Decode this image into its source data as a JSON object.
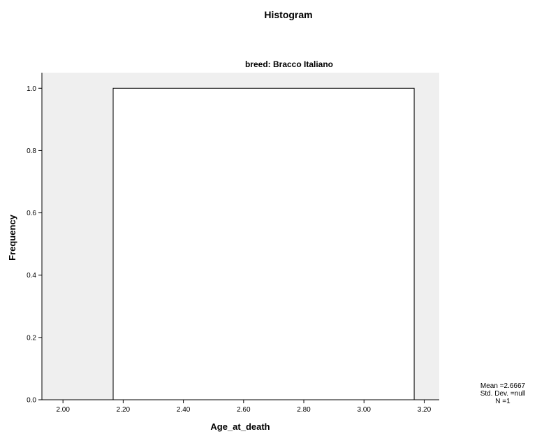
{
  "chart_data": {
    "type": "bar",
    "title": "Histogram",
    "subtitle": "breed: Bracco Italiano",
    "xlabel": "Age_at_death",
    "ylabel": "Frequency",
    "xlim": [
      1.93,
      3.25
    ],
    "ylim": [
      0,
      1.05
    ],
    "x_ticks": [
      2.0,
      2.2,
      2.4,
      2.6,
      2.8,
      3.0,
      3.2
    ],
    "x_tick_labels": [
      "2.00",
      "2.20",
      "2.40",
      "2.60",
      "2.80",
      "3.00",
      "3.20"
    ],
    "y_ticks": [
      0.0,
      0.2,
      0.4,
      0.6,
      0.8,
      1.0
    ],
    "y_tick_labels": [
      "0.0",
      "0.2",
      "0.4",
      "0.6",
      "0.8",
      "1.0"
    ],
    "bins": [
      {
        "x0": 2.1667,
        "x1": 3.1667,
        "frequency": 1
      }
    ],
    "grid": false,
    "plot_background": "#efefef",
    "bar_fill": "#ffffff",
    "bar_stroke": "#000000"
  },
  "stats": {
    "mean": "Mean =2.6667",
    "std_dev": "Std. Dev. =null",
    "n": "N =1"
  }
}
